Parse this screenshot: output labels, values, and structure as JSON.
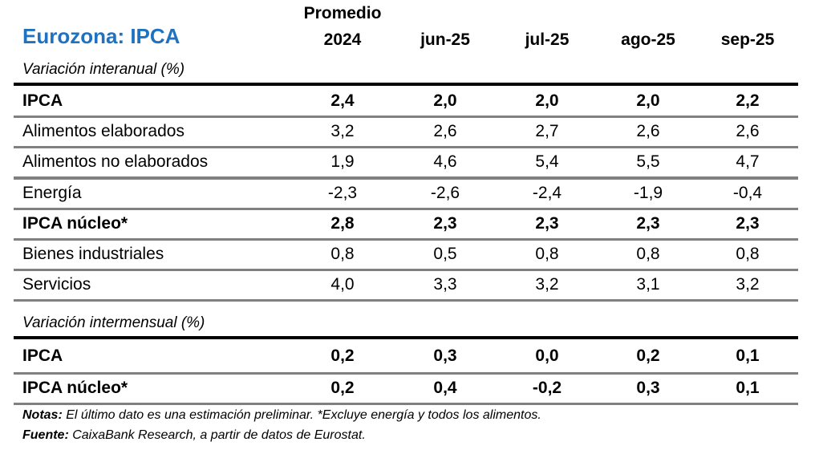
{
  "title": "Eurozona: IPCA",
  "columns": [
    {
      "line1": "Promedio",
      "line2": "2024"
    },
    {
      "line1": "",
      "line2": "jun-25"
    },
    {
      "line1": "",
      "line2": "jul-25"
    },
    {
      "line1": "",
      "line2": "ago-25"
    },
    {
      "line1": "",
      "line2": "sep-25"
    }
  ],
  "sections": [
    {
      "label": "Variación interanual (%)",
      "rows": [
        {
          "label": "IPCA",
          "bold": true,
          "values": [
            "2,4",
            "2,0",
            "2,0",
            "2,0",
            "2,2"
          ]
        },
        {
          "label": "Alimentos elaborados",
          "bold": false,
          "values": [
            "3,2",
            "2,6",
            "2,7",
            "2,6",
            "2,6"
          ]
        },
        {
          "label": "Alimentos no elaborados",
          "bold": false,
          "values": [
            "1,9",
            "4,6",
            "5,4",
            "5,5",
            "4,7"
          ]
        },
        {
          "label": "Energía",
          "bold": false,
          "values": [
            "-2,3",
            "-2,6",
            "-2,4",
            "-1,9",
            "-0,4"
          ]
        },
        {
          "label": "IPCA núcleo*",
          "bold": true,
          "values": [
            "2,8",
            "2,3",
            "2,3",
            "2,3",
            "2,3"
          ]
        },
        {
          "label": "Bienes industriales",
          "bold": false,
          "values": [
            "0,8",
            "0,5",
            "0,8",
            "0,8",
            "0,8"
          ]
        },
        {
          "label": "Servicios",
          "bold": false,
          "values": [
            "4,0",
            "3,3",
            "3,2",
            "3,1",
            "3,2"
          ]
        }
      ]
    },
    {
      "label": "Variación intermensual (%)",
      "rows": [
        {
          "label": "IPCA",
          "bold": true,
          "values": [
            "0,2",
            "0,3",
            "0,0",
            "0,2",
            "0,1"
          ]
        },
        {
          "label": "IPCA núcleo*",
          "bold": true,
          "values": [
            "0,2",
            "0,4",
            "-0,2",
            "0,3",
            "0,1"
          ]
        }
      ]
    }
  ],
  "notes": {
    "label": "Notas:",
    "text": " El último dato es una estimación preliminar. *Excluye energía y todos los alimentos."
  },
  "source": {
    "label": "Fuente:",
    "text": " CaixaBank Research, a partir de datos de Eurostat."
  },
  "colors": {
    "title": "#1f72c0",
    "rule": "#808080"
  }
}
